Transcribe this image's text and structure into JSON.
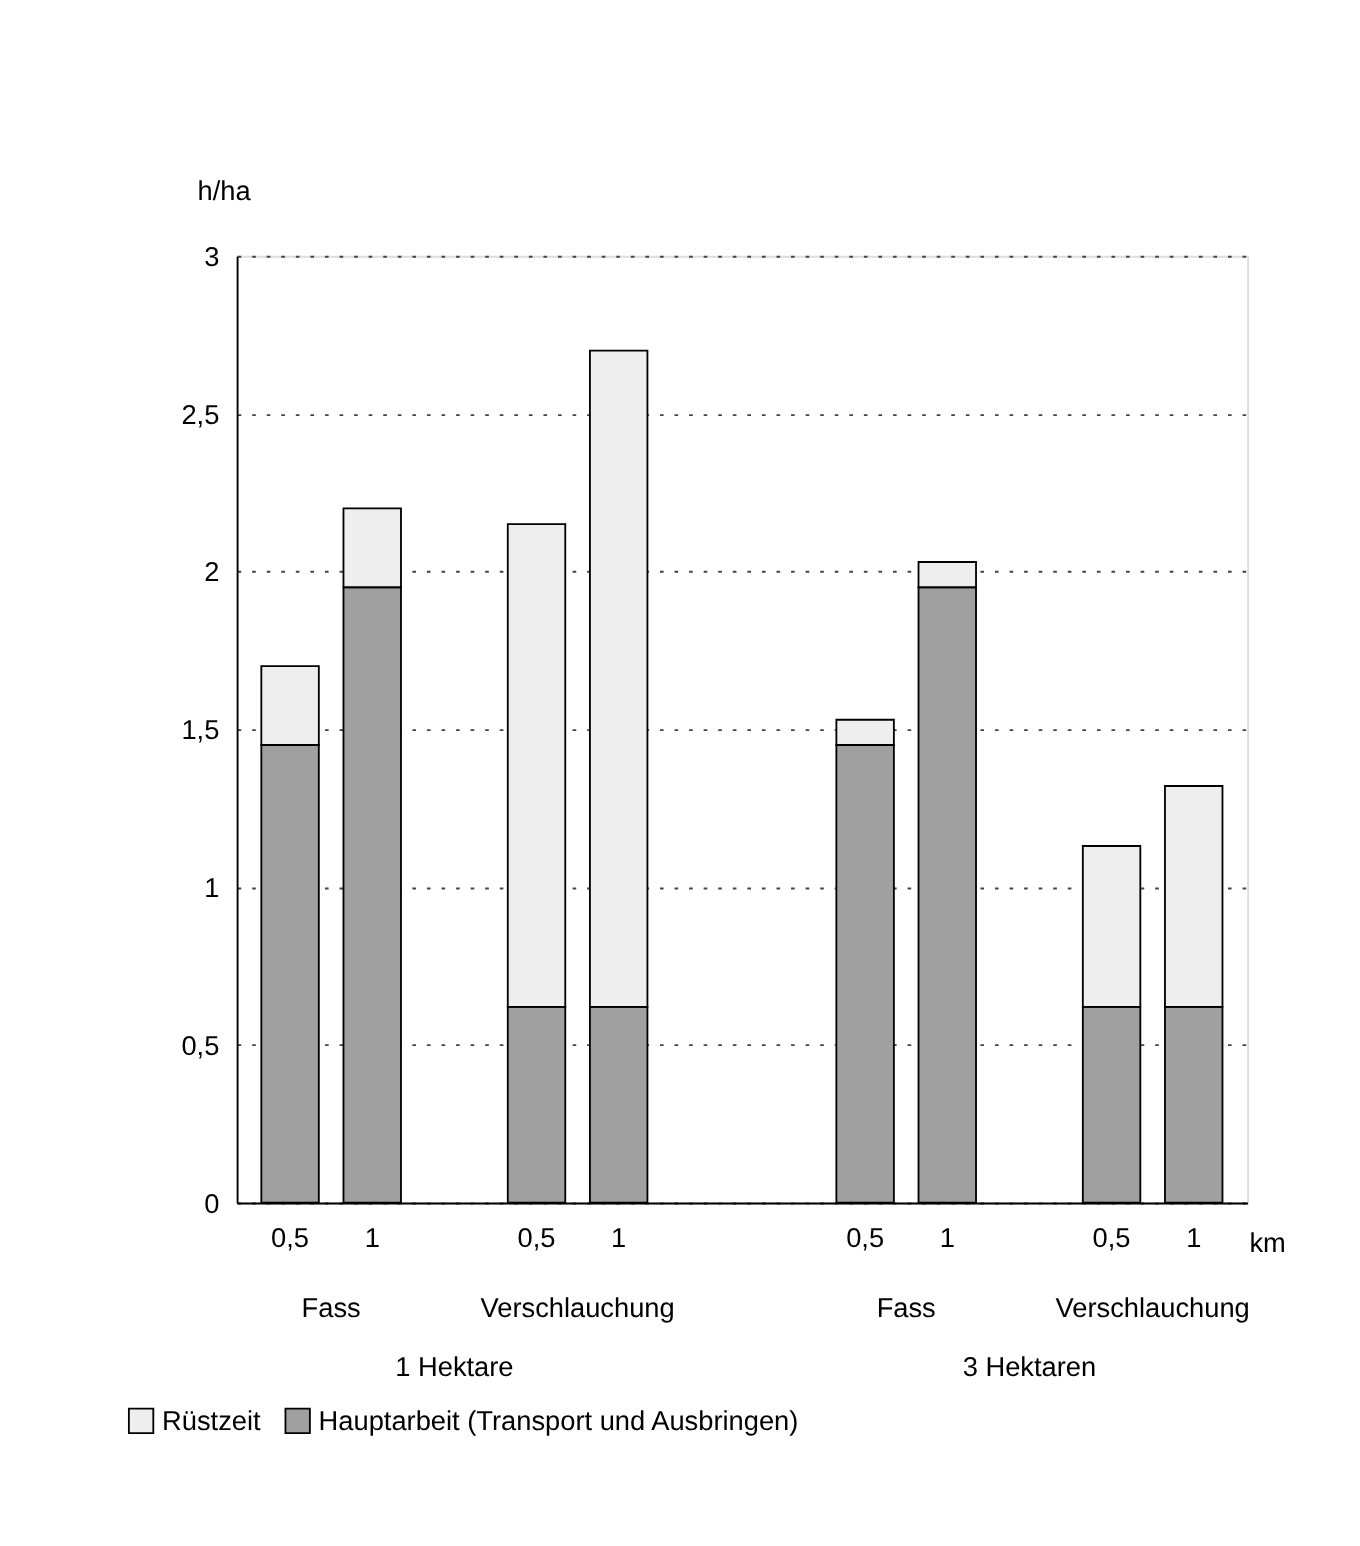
{
  "chart_data": {
    "type": "bar",
    "stacked": true,
    "ylabel": "h/ha",
    "categories": [
      "0,5",
      "1",
      "0,5",
      "1",
      "0,5",
      "1",
      "0,5",
      "1"
    ],
    "series": [
      {
        "name": "Hauptarbeit (Transport und Ausbringen)",
        "color": "#a0a0a0",
        "values": [
          1.45,
          1.95,
          0.62,
          0.62,
          1.45,
          1.95,
          0.62,
          0.62
        ]
      },
      {
        "name": "Rüstzeit",
        "color": "#eeeeee",
        "values": [
          0.25,
          0.25,
          1.53,
          2.08,
          0.08,
          0.08,
          0.51,
          0.7
        ]
      }
    ],
    "ylim": [
      0,
      3
    ],
    "yticks": [
      0,
      {
        "value": 0.5,
        "label": "0,5"
      },
      1,
      {
        "value": 1.5,
        "label": "1,5"
      },
      2,
      {
        "value": 2.5,
        "label": "2,5"
      },
      3
    ],
    "annotations": [
      "Fass",
      "Verschlauchung",
      "Fass",
      "Verschlauchung",
      "1 Hektare",
      "3 Hektaren",
      "km"
    ],
    "grid": "y",
    "legend": "bottom"
  }
}
